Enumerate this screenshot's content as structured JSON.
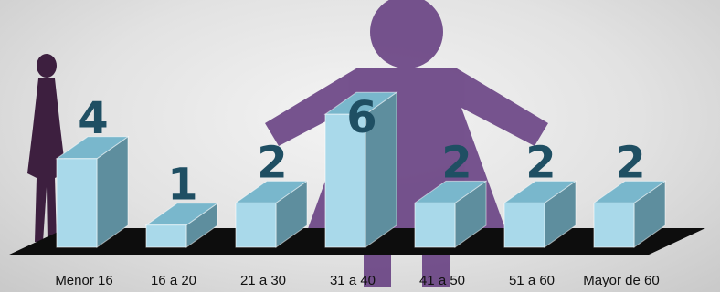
{
  "chart_data": {
    "type": "bar",
    "title": "",
    "xlabel": "",
    "ylabel": "",
    "ylim": [
      0,
      6
    ],
    "grid": false,
    "legend": "none",
    "categories": [
      "Menor 16",
      "16 a 20",
      "21 a 30",
      "31 a 40",
      "41 a 50",
      "51 a 60",
      "Mayor de 60"
    ],
    "values": [
      4,
      1,
      2,
      6,
      2,
      2,
      2
    ],
    "colors": {
      "bar_front": "#a9d9ea",
      "bar_top": "#79b7cc",
      "bar_side": "#5e8e9e",
      "data_label": "#1f4f63",
      "floor": "#0d0d0d",
      "silhouette_large": "#6b4585",
      "silhouette_small": "#3d1f3f"
    },
    "decorations": [
      "woman-silhouette-icon",
      "woman-silhouette-small-icon"
    ]
  }
}
